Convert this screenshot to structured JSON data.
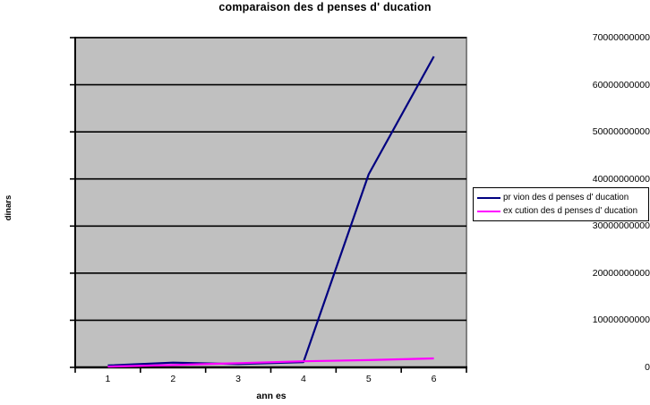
{
  "chart_data": {
    "type": "line",
    "title": "comparaison des d penses d' ducation",
    "xlabel": "ann es",
    "ylabel": "dinars",
    "categories": [
      "1",
      "2",
      "3",
      "4",
      "5",
      "6"
    ],
    "yticks": [
      0,
      10000000000,
      20000000000,
      30000000000,
      40000000000,
      50000000000,
      60000000000,
      70000000000
    ],
    "ylim": [
      0,
      70000000000
    ],
    "grid": true,
    "legend_position": "right",
    "plot_bg": "#c0c0c0",
    "plot_border": "#808080",
    "grid_color": "#000000",
    "axis_color": "#000000",
    "series": [
      {
        "name": "pr vion des d penses d' ducation",
        "color": "#000080",
        "values": [
          400000000,
          1000000000,
          700000000,
          1100000000,
          41000000000,
          66000000000
        ]
      },
      {
        "name": "ex cution des d penses d' ducation",
        "color": "#ff00ff",
        "values": [
          150000000,
          500000000,
          900000000,
          1300000000,
          1550000000,
          1900000000
        ]
      }
    ]
  }
}
